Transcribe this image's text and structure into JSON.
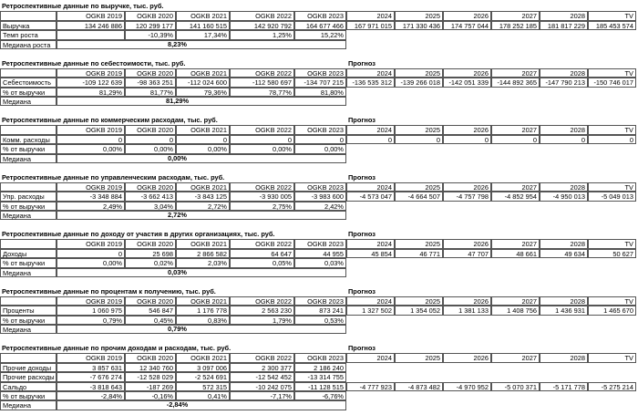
{
  "sections": [
    {
      "title": "Ретроспективные данные по выручке, тыс. руб.",
      "columns": [
        "OGKB 2019",
        "OGKB 2020",
        "OGKB 2021",
        "OGKB 2022",
        "OGKB 2023",
        "2024",
        "2025",
        "2026",
        "2027",
        "2028",
        "TV"
      ],
      "rows": [
        {
          "label": "Выручка",
          "values": [
            "134 246 886",
            "120 299 177",
            "141 160 515",
            "142 920 792",
            "164 677 466",
            "167 971 015",
            "171 330 436",
            "174 757 044",
            "178 252 185",
            "181 817 229",
            "185 453 574"
          ]
        },
        {
          "label": "Темп роста",
          "values": [
            null,
            "-10,39%",
            "17,34%",
            "1,25%",
            "15,22%"
          ]
        }
      ],
      "median": {
        "label": "Медиана роста",
        "value": "8,23%"
      }
    },
    {
      "title": "Ретроспективные данные по себестоимости, тыс. руб.",
      "forecast_label": "Прогноз",
      "columns": [
        "OGKB 2019",
        "OGKB 2020",
        "OGKB 2021",
        "OGKB 2022",
        "OGKB 2023",
        "2024",
        "2025",
        "2026",
        "2027",
        "2028",
        "TV"
      ],
      "rows": [
        {
          "label": "Себестоимость",
          "values": [
            "-109 122 639",
            "-98 363 251",
            "-112 024 600",
            "-112 580 697",
            "-134 707 215",
            "-136 535 312",
            "-139 266 018",
            "-142 051 339",
            "-144 892 365",
            "-147 790 213",
            "-150 746 017"
          ]
        },
        {
          "label": "% от выручки",
          "values": [
            "81,29%",
            "81,77%",
            "79,36%",
            "78,77%",
            "81,80%"
          ]
        }
      ],
      "median": {
        "label": "Медиана",
        "value": "81,29%"
      }
    },
    {
      "title": "Ретроспективные данные по коммерческим расходам, тыс. руб.",
      "forecast_label": "Прогноз",
      "columns": [
        "OGKB 2019",
        "OGKB 2020",
        "OGKB 2021",
        "OGKB 2022",
        "OGKB 2023",
        "2024",
        "2025",
        "2026",
        "2027",
        "2028",
        "TV"
      ],
      "rows": [
        {
          "label": "Комм. расходы",
          "values": [
            "0",
            "0",
            "0",
            "0",
            "0",
            "0",
            "0",
            "0",
            "0",
            "0",
            "0"
          ]
        },
        {
          "label": "% от выручки",
          "values": [
            "0,00%",
            "0,00%",
            "0,00%",
            "0,00%",
            "0,00%"
          ]
        }
      ],
      "median": {
        "label": "Медиана",
        "value": "0,00%"
      }
    },
    {
      "title": "Ретроспективные данные по управленческим расходам, тыс. руб.",
      "forecast_label": "Прогноз",
      "columns": [
        "OGKB 2019",
        "OGKB 2020",
        "OGKB 2021",
        "OGKB 2022",
        "OGKB 2023",
        "2024",
        "2025",
        "2026",
        "2027",
        "2028",
        "TV"
      ],
      "rows": [
        {
          "label": "Упр. расходы",
          "values": [
            "-3 348 884",
            "-3 662 413",
            "-3 843 125",
            "-3 930 005",
            "-3 983 600",
            "-4 573 047",
            "-4 664 507",
            "-4 757 798",
            "-4 852 954",
            "-4 950 013",
            "-5 049 013"
          ]
        },
        {
          "label": "% от выручки",
          "values": [
            "2,49%",
            "3,04%",
            "2,72%",
            "2,75%",
            "2,42%"
          ]
        }
      ],
      "median": {
        "label": "Медиана",
        "value": "2,72%"
      }
    },
    {
      "title": "Ретроспективные данные по доходу от участия в других организациях, тыс. руб.",
      "forecast_label": "Прогноз",
      "columns": [
        "OGKB 2019",
        "OGKB 2020",
        "OGKB 2021",
        "OGKB 2022",
        "OGKB 2023",
        "2024",
        "2025",
        "2026",
        "2027",
        "2028",
        "TV"
      ],
      "rows": [
        {
          "label": "Доходы",
          "values": [
            "0",
            "25 698",
            "2 866 582",
            "64 647",
            "44 955",
            "45 854",
            "46 771",
            "47 707",
            "48 661",
            "49 634",
            "50 627"
          ]
        },
        {
          "label": "% от выручки",
          "values": [
            "0,00%",
            "0,02%",
            "2,03%",
            "0,05%",
            "0,03%"
          ]
        }
      ],
      "median": {
        "label": "Медиана",
        "value": "0,03%"
      }
    },
    {
      "title": "Ретроспективные данные по процентам к получению, тыс. руб.",
      "forecast_label": "Прогноз",
      "columns": [
        "OGKB 2019",
        "OGKB 2020",
        "OGKB 2021",
        "OGKB 2022",
        "OGKB 2023",
        "2024",
        "2025",
        "2026",
        "2027",
        "2028",
        "TV"
      ],
      "rows": [
        {
          "label": "Проценты",
          "values": [
            "1 060 975",
            "546 847",
            "1 176 778",
            "2 563 230",
            "873 241",
            "1 327 502",
            "1 354 052",
            "1 381 133",
            "1 408 756",
            "1 436 931",
            "1 465 670"
          ]
        },
        {
          "label": "% от выручки",
          "values": [
            "0,79%",
            "0,45%",
            "0,83%",
            "1,79%",
            "0,53%"
          ]
        }
      ],
      "median": {
        "label": "Медиана",
        "value": "0,79%"
      }
    },
    {
      "title": "Ретроспективные данные по прочим доходам и расходам, тыс. руб.",
      "forecast_label": "Прогноз",
      "columns": [
        "OGKB 2019",
        "OGKB 2020",
        "OGKB 2021",
        "OGKB 2022",
        "OGKB 2023",
        "2024",
        "2025",
        "2026",
        "2027",
        "2028",
        "TV"
      ],
      "rows": [
        {
          "label": "Прочие доходы",
          "values": [
            "3 857 631",
            "12 340 760",
            "3 097 006",
            "2 300 377",
            "2 186 240"
          ]
        },
        {
          "label": "Прочие расходы",
          "values": [
            "-7 676 274",
            "-12 528 029",
            "-2 524 691",
            "-12 542 452",
            "-13 314 755"
          ]
        },
        {
          "label": "Сальдо",
          "values": [
            "-3 818 643",
            "-187 269",
            "572 315",
            "-10 242 075",
            "-11 128 515",
            "-4 777 923",
            "-4 873 482",
            "-4 970 952",
            "-5 070 371",
            "-5 171 778",
            "-5 275 214"
          ]
        },
        {
          "label": "% от выручки",
          "values": [
            "-2,84%",
            "-0,16%",
            "0,41%",
            "-7,17%",
            "-6,76%"
          ]
        }
      ],
      "median": {
        "label": "Медиана",
        "value": "-2,84%"
      }
    }
  ]
}
